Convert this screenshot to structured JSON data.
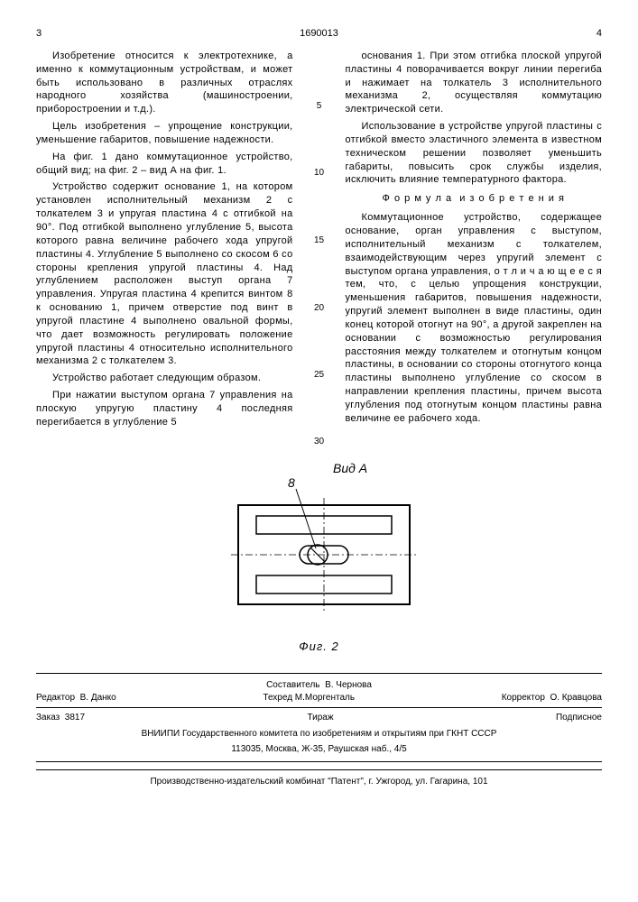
{
  "page": {
    "left_num": "3",
    "doc_num": "1690013",
    "right_num": "4"
  },
  "gutter_numbers": [
    "5",
    "10",
    "15",
    "20",
    "25",
    "30"
  ],
  "left_col": [
    "Изобретение относится к электротехнике, а именно к коммутационным устройствам, и может быть использовано в различных отраслях народного хозяйства (машиностроении, приборостроении и т.д.).",
    "Цель изобретения – упрощение конструкции, уменьшение габаритов, повышение надежности.",
    "На фиг. 1 дано коммутационное устройство, общий вид; на фиг. 2 – вид А на фиг. 1.",
    "Устройство содержит основание 1, на котором установлен исполнительный механизм 2 с толкателем 3 и упругая пластина 4 с отгибкой на 90°. Под отгибкой выполнено углубление 5, высота которого равна величине рабочего хода упругой пластины 4. Углубление 5 выполнено со скосом 6 со стороны крепления упругой пластины 4. Над углублением расположен выступ органа 7 управления. Упругая пластина 4 крепится винтом 8 к основанию 1, причем отверстие под винт в упругой пластине 4 выполнено овальной формы, что дает возможность регулировать положение упругой пластины 4 относительно исполнительного механизма 2 с толкателем 3.",
    "Устройство работает следующим образом.",
    "При нажатии выступом органа 7 управления на плоскую упругую пластину 4 последняя перегибается в углубление 5"
  ],
  "right_col_top": [
    "основания 1. При этом отгибка плоской упругой пластины 4 поворачивается вокруг линии перегиба и нажимает на толкатель 3 исполнительного механизма 2, осуществляя коммутацию электрической сети.",
    "Использование в устройстве упругой пластины с отгибкой вместо эластичного элемента в известном техническом решении позволяет уменьшить габариты, повысить срок службы изделия, исключить влияние температурного фактора."
  ],
  "formula_title": "Ф о р м у л а  и з о б р е т е н и я",
  "right_col_formula": [
    "Коммутационное устройство, содержащее основание, орган управления с выступом, исполнительный механизм с толкателем, взаимодействующим через упругий элемент с выступом органа управления, о т л и ч а ю щ е е с я тем, что, с целью упрощения конструкции, уменьшения габаритов, повышения надежности, упругий элемент выполнен в виде пластины, один конец которой отогнут на 90°, а другой закреплен на основании с возможностью регулирования расстояния между толкателем и отогнутым концом пластины, в основании со стороны отогнутого конца пластины выполнено углубление со скосом в направлении крепления пластины, причем высота углубления под отогнутым концом пластины равна величине ее рабочего хода."
  ],
  "figure": {
    "view_label": "Вид А",
    "ref_num": "8",
    "caption": "Фиг. 2"
  },
  "footer": {
    "compiler": "Составитель  В. Чернова",
    "editor": "Редактор  В. Данко",
    "techred": "Техред М.Моргенталь",
    "corrector": "Корректор  О. Кравцова",
    "order": "Заказ  3817",
    "tiraj": "Тираж",
    "subscription": "Подписное",
    "org": "ВНИИПИ Государственного комитета по изобретениям и открытиям при ГКНТ СССР",
    "address": "113035, Москва, Ж-35, Раушская наб., 4/5"
  },
  "imprint": "Производственно-издательский комбинат \"Патент\", г. Ужгород, ул. Гагарина, 101"
}
